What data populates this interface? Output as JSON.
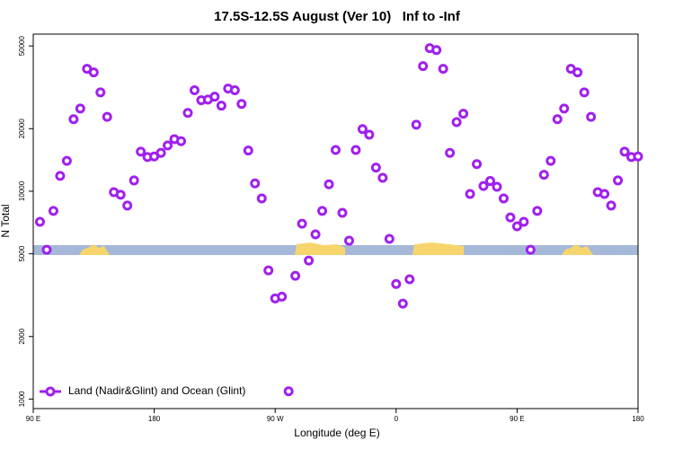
{
  "chart_data": {
    "type": "scatter",
    "title": "17.5S-12.5S August (Ver 10)   Inf to -Inf",
    "x_label": "Longitude (deg E)",
    "y_label": "N Total",
    "ylog": true,
    "color": "#a020f0",
    "legend": "bottom-left",
    "series": [
      {
        "name": "Land (Nadir&Glint) and Ocean (Glint)",
        "color": "#a020f0",
        "x": [
          95,
          100,
          105,
          110,
          115,
          120,
          125,
          130,
          135,
          140,
          145,
          150,
          155,
          160,
          165,
          170,
          175,
          180,
          185,
          190,
          195,
          200,
          205,
          210,
          215,
          220,
          225,
          230,
          235,
          240,
          245,
          250,
          255,
          260,
          265,
          270,
          275,
          280,
          285,
          290,
          295,
          300,
          305,
          310,
          315,
          320,
          325,
          330,
          335,
          340,
          345,
          350,
          355,
          360,
          365,
          370,
          375,
          380,
          385,
          390,
          395,
          400,
          405,
          410,
          415,
          420,
          425,
          430,
          435,
          440,
          445,
          450,
          455,
          460,
          465,
          470,
          475,
          480,
          485,
          490,
          495,
          500,
          505,
          510,
          515,
          520,
          525,
          530,
          535,
          540
        ],
        "values": [
          7130,
          5230,
          8040,
          11850,
          14000,
          22200,
          25000,
          38800,
          37300,
          29900,
          22800,
          9900,
          9620,
          8530,
          11270,
          15500,
          14600,
          14700,
          15300,
          16600,
          17800,
          17400,
          23800,
          30600,
          27400,
          27600,
          28500,
          25800,
          31200,
          30600,
          26300,
          15700,
          10900,
          9230,
          4160,
          3050,
          3110,
          1090,
          3920,
          6980,
          4640,
          6200,
          8040,
          10800,
          15800,
          7870,
          5780,
          15800,
          19900,
          18700,
          13000,
          11600,
          5900,
          3580,
          2880,
          3770,
          20900,
          40000,
          48800,
          47800,
          38800,
          15300,
          21500,
          23600,
          9700,
          13500,
          10600,
          11200,
          10500,
          9230,
          7480,
          6780,
          7130,
          5230,
          8040,
          12000,
          14000,
          22200,
          25000,
          38800,
          37300,
          29900,
          22800,
          9900,
          9700,
          8530,
          11270,
          15500,
          14600,
          14700
        ]
      }
    ],
    "xlim": [
      90,
      540
    ],
    "xticks": [
      {
        "value": 90,
        "label": "90 E"
      },
      {
        "value": 180,
        "label": "180"
      },
      {
        "value": 270,
        "label": "90 W"
      },
      {
        "value": 360,
        "label": "0"
      },
      {
        "value": 450,
        "label": "90 E"
      },
      {
        "value": 540,
        "label": "180"
      }
    ],
    "ylim": [
      900,
      57000
    ],
    "yticks": [
      1000,
      2000,
      5000,
      10000,
      20000,
      50000
    ]
  }
}
